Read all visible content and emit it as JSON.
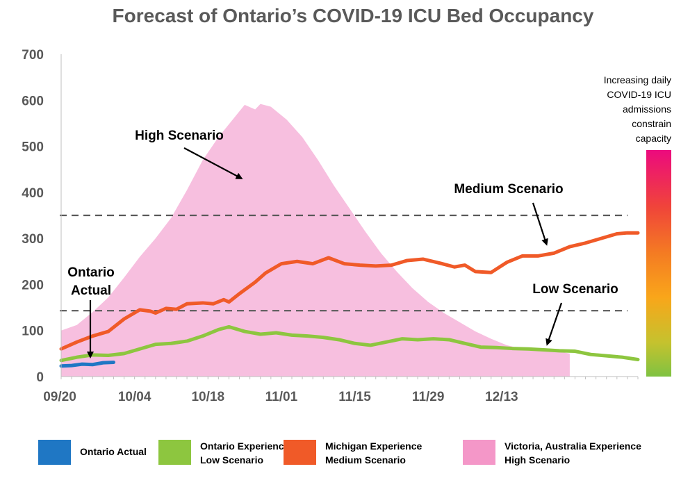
{
  "chart_data": {
    "type": "area",
    "title": "Forecast of Ontario’s COVID-19 ICU Bed Occupancy",
    "xlabel": "",
    "ylabel": "",
    "ylim": [
      0,
      700
    ],
    "y_ticks": [
      0,
      100,
      200,
      300,
      400,
      500,
      600,
      700
    ],
    "x_ticks": [
      "09/20",
      "10/04",
      "10/18",
      "11/01",
      "11/15",
      "11/29",
      "12/13"
    ],
    "x_day_range": [
      0,
      88
    ],
    "reference_lines": [
      {
        "y": 350,
        "style": "dashed"
      },
      {
        "y": 143,
        "style": "dashed"
      }
    ],
    "series": [
      {
        "name": "Victoria, Australia Experience High Scenario",
        "color": "#f7bfdf",
        "kind": "area",
        "points": [
          [
            0,
            100
          ],
          [
            3,
            112
          ],
          [
            6,
            140
          ],
          [
            9,
            172
          ],
          [
            12,
            215
          ],
          [
            15,
            260
          ],
          [
            18,
            300
          ],
          [
            21,
            345
          ],
          [
            24,
            405
          ],
          [
            27,
            470
          ],
          [
            30,
            520
          ],
          [
            33,
            562
          ],
          [
            35,
            590
          ],
          [
            37,
            580
          ],
          [
            38,
            592
          ],
          [
            40,
            586
          ],
          [
            43,
            558
          ],
          [
            46,
            520
          ],
          [
            49,
            470
          ],
          [
            52,
            415
          ],
          [
            55,
            365
          ],
          [
            58,
            315
          ],
          [
            61,
            268
          ],
          [
            64,
            228
          ],
          [
            67,
            192
          ],
          [
            70,
            162
          ],
          [
            73,
            138
          ],
          [
            76,
            118
          ],
          [
            79,
            98
          ],
          [
            82,
            82
          ],
          [
            85,
            68
          ],
          [
            88,
            60
          ],
          [
            91,
            58
          ],
          [
            94,
            55
          ],
          [
            96,
            52
          ],
          [
            97,
            50
          ]
        ]
      },
      {
        "name": "Michigan Experience Medium Scenario",
        "color": "#f05a28",
        "kind": "line",
        "points": [
          [
            0,
            60
          ],
          [
            3,
            75
          ],
          [
            6,
            88
          ],
          [
            9,
            98
          ],
          [
            12,
            125
          ],
          [
            15,
            145
          ],
          [
            17,
            142
          ],
          [
            18,
            138
          ],
          [
            20,
            148
          ],
          [
            22,
            146
          ],
          [
            24,
            158
          ],
          [
            27,
            160
          ],
          [
            29,
            158
          ],
          [
            31,
            167
          ],
          [
            32,
            162
          ],
          [
            34,
            180
          ],
          [
            37,
            205
          ],
          [
            39,
            225
          ],
          [
            42,
            245
          ],
          [
            45,
            250
          ],
          [
            48,
            245
          ],
          [
            51,
            258
          ],
          [
            54,
            245
          ],
          [
            57,
            242
          ],
          [
            60,
            240
          ],
          [
            63,
            242
          ],
          [
            66,
            252
          ],
          [
            69,
            255
          ],
          [
            72,
            247
          ],
          [
            75,
            238
          ],
          [
            77,
            242
          ],
          [
            79,
            228
          ],
          [
            82,
            226
          ],
          [
            85,
            248
          ],
          [
            88,
            262
          ],
          [
            91,
            262
          ],
          [
            94,
            268
          ],
          [
            97,
            282
          ],
          [
            100,
            290
          ],
          [
            103,
            300
          ],
          [
            106,
            310
          ],
          [
            108,
            312
          ],
          [
            110,
            312
          ]
        ]
      },
      {
        "name": "Ontario Experience Low Scenario",
        "color": "#8dc63f",
        "kind": "line",
        "points": [
          [
            0,
            35
          ],
          [
            3,
            42
          ],
          [
            6,
            47
          ],
          [
            9,
            46
          ],
          [
            12,
            50
          ],
          [
            15,
            60
          ],
          [
            18,
            70
          ],
          [
            21,
            72
          ],
          [
            24,
            77
          ],
          [
            27,
            88
          ],
          [
            30,
            102
          ],
          [
            32,
            108
          ],
          [
            35,
            98
          ],
          [
            38,
            92
          ],
          [
            41,
            95
          ],
          [
            44,
            90
          ],
          [
            47,
            88
          ],
          [
            50,
            85
          ],
          [
            53,
            80
          ],
          [
            56,
            72
          ],
          [
            59,
            68
          ],
          [
            62,
            75
          ],
          [
            65,
            82
          ],
          [
            68,
            80
          ],
          [
            71,
            82
          ],
          [
            74,
            80
          ],
          [
            77,
            72
          ],
          [
            80,
            64
          ],
          [
            83,
            63
          ],
          [
            86,
            61
          ],
          [
            89,
            60
          ],
          [
            92,
            58
          ],
          [
            95,
            56
          ],
          [
            98,
            55
          ],
          [
            101,
            48
          ],
          [
            104,
            45
          ],
          [
            107,
            42
          ],
          [
            110,
            37
          ]
        ]
      },
      {
        "name": "Ontario Actual",
        "color": "#1f77c4",
        "kind": "line",
        "points": [
          [
            0,
            23
          ],
          [
            2,
            24
          ],
          [
            4,
            27
          ],
          [
            6,
            26
          ],
          [
            8,
            30
          ],
          [
            10,
            31
          ]
        ]
      }
    ],
    "annotations": [
      {
        "text": "High Scenario"
      },
      {
        "text": "Medium Scenario"
      },
      {
        "text": "Low Scenario"
      },
      {
        "text": "Ontario Actual"
      }
    ],
    "gradient_bar": {
      "label_lines": [
        "Increasing daily",
        "COVID-19 ICU",
        "admissions",
        "constrain",
        "capacity"
      ],
      "colors": [
        "#ec0a7e",
        "#f0443a",
        "#f47a23",
        "#f9a61a",
        "#c5c22e",
        "#7fc242"
      ]
    },
    "legend": {
      "position": "bottom",
      "items": [
        {
          "lines": [
            "Ontario Actual"
          ],
          "color": "#1f77c4"
        },
        {
          "lines": [
            "Ontario Experience",
            "Low Scenario"
          ],
          "color": "#8dc63f"
        },
        {
          "lines": [
            "Michigan Experience",
            "Medium Scenario"
          ],
          "color": "#f05a28"
        },
        {
          "lines": [
            "Victoria, Australia Experience",
            "High Scenario"
          ],
          "color": "#f497c8"
        }
      ]
    }
  }
}
